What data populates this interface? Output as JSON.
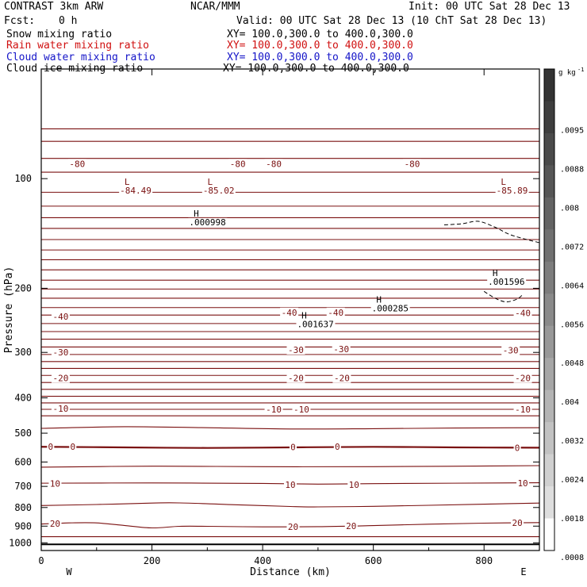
{
  "header": {
    "title_left": "CONTRAST  3km ARW",
    "title_center": "NCAR/MMM",
    "init": "Init: 00 UTC Sat 28 Dec 13",
    "fcst_label": "Fcst:",
    "fcst_value": "0 h",
    "valid": "Valid: 00 UTC Sat 28 Dec 13 (10 ChT Sat 28 Dec 13)",
    "fields": [
      {
        "name": "Snow mixing ratio",
        "xy": "XY= 100.0,300.0 to 400.0,300.0",
        "color": "#000000"
      },
      {
        "name": "Rain water mixing ratio",
        "xy": "XY= 100.0,300.0 to 400.0,300.0",
        "color": "#d01010"
      },
      {
        "name": "Cloud water mixing ratio",
        "xy": "XY= 100.0,300.0 to 400.0,300.0",
        "color": "#1414c8"
      },
      {
        "name": "Cloud ice mixing ratio",
        "xy": "XY= 100.0,300.0 to 400.0,300.0",
        "color": "#000000"
      }
    ]
  },
  "colors": {
    "contour": "#7a1010",
    "axis": "#000000"
  },
  "chart_data": {
    "type": "line",
    "subtype": "cross-section contour",
    "xlabel": "Distance (km)",
    "ylabel": "Pressure (hPa)",
    "xlim": [
      0,
      900
    ],
    "ylim": [
      1050,
      50
    ],
    "yscale": "log",
    "x_ticks": [
      0,
      200,
      400,
      600,
      800
    ],
    "y_ticks": [
      100,
      200,
      300,
      400,
      500,
      600,
      700,
      800,
      900,
      1000
    ],
    "x_end_labels": {
      "left": "W",
      "right": "E"
    },
    "surface_pressure": 1010,
    "contour_lines": [
      {
        "x": [
          0,
          900
        ],
        "p": [
          73,
          73
        ]
      },
      {
        "x": [
          0,
          900
        ],
        "p": [
          79,
          79
        ]
      },
      {
        "x": [
          0,
          900
        ],
        "p": [
          88,
          88
        ]
      },
      {
        "x": [
          0,
          900
        ],
        "p": [
          96,
          96
        ]
      },
      {
        "x": [
          0,
          900
        ],
        "p": [
          109,
          109
        ]
      },
      {
        "x": [
          0,
          900
        ],
        "p": [
          119,
          119
        ]
      },
      {
        "x": [
          0,
          900
        ],
        "p": [
          128,
          128
        ]
      },
      {
        "x": [
          0,
          900
        ],
        "p": [
          137,
          137
        ]
      },
      {
        "x": [
          0,
          900
        ],
        "p": [
          147,
          147
        ]
      },
      {
        "x": [
          0,
          900
        ],
        "p": [
          157,
          157
        ]
      },
      {
        "x": [
          0,
          900
        ],
        "p": [
          167,
          167
        ]
      },
      {
        "x": [
          0,
          900
        ],
        "p": [
          178,
          178
        ]
      },
      {
        "x": [
          0,
          900
        ],
        "p": [
          190,
          190
        ]
      },
      {
        "x": [
          0,
          900
        ],
        "p": [
          201,
          201
        ]
      },
      {
        "x": [
          0,
          900
        ],
        "p": [
          213,
          213
        ]
      },
      {
        "x": [
          0,
          900
        ],
        "p": [
          226,
          226
        ]
      },
      {
        "x": [
          0,
          900
        ],
        "p": [
          237,
          237
        ]
      },
      {
        "x": [
          0,
          900
        ],
        "p": [
          250,
          250
        ]
      },
      {
        "x": [
          0,
          900
        ],
        "p": [
          263,
          263
        ]
      },
      {
        "x": [
          0,
          900
        ],
        "p": [
          276,
          276
        ]
      },
      {
        "x": [
          0,
          900
        ],
        "p": [
          290,
          290
        ]
      },
      {
        "x": [
          0,
          900
        ],
        "p": [
          304,
          304
        ]
      },
      {
        "x": [
          0,
          900
        ],
        "p": [
          318,
          318
        ]
      },
      {
        "x": [
          0,
          900
        ],
        "p": [
          332,
          332
        ]
      },
      {
        "x": [
          0,
          900
        ],
        "p": [
          347,
          347
        ]
      },
      {
        "x": [
          0,
          900
        ],
        "p": [
          363,
          363
        ]
      },
      {
        "x": [
          0,
          900
        ],
        "p": [
          379,
          379
        ]
      },
      {
        "x": [
          0,
          900
        ],
        "p": [
          396,
          396
        ]
      },
      {
        "x": [
          0,
          900
        ],
        "p": [
          413,
          413
        ]
      },
      {
        "x": [
          0,
          900
        ],
        "p": [
          430,
          430
        ]
      },
      {
        "x": [
          0,
          900
        ],
        "p": [
          448,
          448
        ]
      },
      {
        "x": [
          0,
          150,
          300,
          450,
          600,
          750,
          900
        ],
        "p": [
          485,
          480,
          483,
          487,
          486,
          484,
          483
        ]
      },
      {
        "x": [
          0,
          150,
          300,
          450,
          600,
          750,
          900
        ],
        "p": [
          545,
          547,
          549,
          547,
          545,
          547,
          548
        ]
      },
      {
        "x": [
          0,
          200,
          400,
          600,
          900
        ],
        "p": [
          620,
          616,
          618,
          618,
          614
        ]
      },
      {
        "x": [
          0,
          200,
          400,
          500,
          600,
          900
        ],
        "p": [
          686,
          685,
          687,
          690,
          688,
          684
        ]
      },
      {
        "x": [
          0,
          100,
          200,
          250,
          350,
          450,
          500,
          600,
          700,
          900
        ],
        "p": [
          790,
          785,
          778,
          777,
          786,
          795,
          797,
          794,
          789,
          778
        ]
      },
      {
        "x": [
          0,
          50,
          100,
          150,
          200,
          250,
          300,
          400,
          500,
          600,
          700,
          800,
          900
        ],
        "p": [
          888,
          882,
          882,
          896,
          910,
          901,
          901,
          904,
          903,
          897,
          889,
          883,
          880
        ]
      },
      {
        "x": [
          0,
          900
        ],
        "p": [
          962,
          962
        ]
      }
    ],
    "contour_labels": [
      {
        "text": "-80",
        "x": 65,
        "p": 91
      },
      {
        "text": "-80",
        "x": 355,
        "p": 91
      },
      {
        "text": "-80",
        "x": 420,
        "p": 91
      },
      {
        "text": "-80",
        "x": 670,
        "p": 91
      },
      {
        "text": "-40",
        "x": 35,
        "p": 239
      },
      {
        "text": "-40",
        "x": 448,
        "p": 233
      },
      {
        "text": "-40",
        "x": 532,
        "p": 233
      },
      {
        "text": "-40",
        "x": 870,
        "p": 234
      },
      {
        "text": "-30",
        "x": 35,
        "p": 300
      },
      {
        "text": "-30",
        "x": 460,
        "p": 295
      },
      {
        "text": "-30",
        "x": 542,
        "p": 294
      },
      {
        "text": "-30",
        "x": 848,
        "p": 296
      },
      {
        "text": "-20",
        "x": 35,
        "p": 353
      },
      {
        "text": "-20",
        "x": 460,
        "p": 353
      },
      {
        "text": "-20",
        "x": 543,
        "p": 353
      },
      {
        "text": "-20",
        "x": 870,
        "p": 353
      },
      {
        "text": "-10",
        "x": 35,
        "p": 428
      },
      {
        "text": "-10",
        "x": 420,
        "p": 430
      },
      {
        "text": "-10",
        "x": 470,
        "p": 430
      },
      {
        "text": "-10",
        "x": 870,
        "p": 430
      },
      {
        "text": "0",
        "x": 17,
        "p": 544
      },
      {
        "text": "0",
        "x": 57,
        "p": 544
      },
      {
        "text": "0",
        "x": 455,
        "p": 545
      },
      {
        "text": "0",
        "x": 535,
        "p": 544
      },
      {
        "text": "0",
        "x": 860,
        "p": 549
      },
      {
        "text": "10",
        "x": 25,
        "p": 688
      },
      {
        "text": "10",
        "x": 450,
        "p": 692
      },
      {
        "text": "10",
        "x": 565,
        "p": 693
      },
      {
        "text": "10",
        "x": 870,
        "p": 685
      },
      {
        "text": "20",
        "x": 25,
        "p": 886
      },
      {
        "text": "20",
        "x": 455,
        "p": 904
      },
      {
        "text": "20",
        "x": 560,
        "p": 898
      },
      {
        "text": "20",
        "x": 860,
        "p": 881
      }
    ],
    "extrema": [
      {
        "kind": "L",
        "x": 155,
        "p": 104,
        "value": "-84.49",
        "color": "#7a1010"
      },
      {
        "kind": "L",
        "x": 305,
        "p": 104,
        "value": "-85.02",
        "color": "#7a1010"
      },
      {
        "kind": "L",
        "x": 835,
        "p": 104,
        "value": "-85.89",
        "color": "#7a1010"
      },
      {
        "kind": "H",
        "x": 280,
        "p": 127,
        "value": ".000998",
        "color": "#000000"
      },
      {
        "kind": "H",
        "x": 475,
        "p": 242,
        "value": ".001637",
        "color": "#000000"
      },
      {
        "kind": "H",
        "x": 610,
        "p": 219,
        "value": ".000285",
        "color": "#000000"
      },
      {
        "kind": "H",
        "x": 820,
        "p": 185,
        "value": ".001596",
        "color": "#000000"
      }
    ],
    "dashed_contours": [
      {
        "x": [
          728,
          760,
          790,
          820,
          850,
          900
        ],
        "p": [
          134,
          133,
          131,
          136,
          143,
          150
        ]
      },
      {
        "x": [
          800,
          820,
          840,
          860,
          870
        ],
        "p": [
          204,
          213,
          218,
          214,
          208
        ]
      }
    ],
    "colorbar": {
      "unit": "g kg",
      "unit_superscript": "-1",
      "ticks": [
        ".0095",
        ".0088",
        ".008",
        ".0072",
        ".0064",
        ".0056",
        ".0048",
        ".004",
        ".0032",
        ".0024",
        ".0018",
        ".0008"
      ],
      "fill_colors": [
        "#333333",
        "#3e3e3e",
        "#4a4a4a",
        "#565656",
        "#636363",
        "#707070",
        "#7d7d7d",
        "#8a8a8a",
        "#989898",
        "#a6a6a6",
        "#b4b4b4",
        "#c2c2c2",
        "#d0d0d0",
        "#dedede",
        "#ffffff"
      ]
    }
  }
}
